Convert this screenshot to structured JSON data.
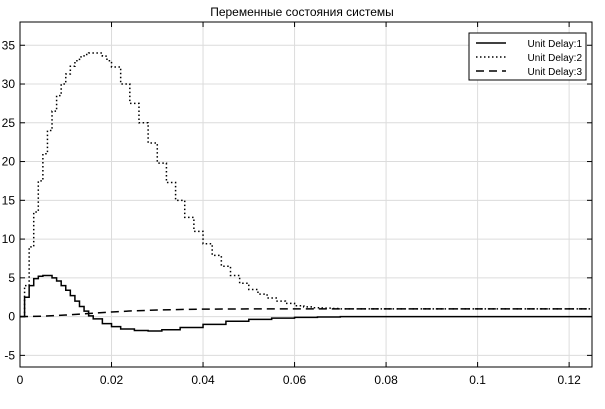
{
  "chart_data": {
    "type": "line",
    "title": "Переменные состояния системы",
    "xlabel": "",
    "ylabel": "",
    "xlim": [
      0,
      0.125
    ],
    "ylim": [
      -6.5,
      38
    ],
    "xticks": [
      0,
      0.02,
      0.04,
      0.06,
      0.08,
      0.1,
      0.12
    ],
    "xtick_labels": [
      "0",
      "0.02",
      "0.04",
      "0.06",
      "0.08",
      "0.1",
      "0.12"
    ],
    "yticks": [
      -5,
      0,
      5,
      10,
      15,
      20,
      25,
      30,
      35
    ],
    "ytick_labels": [
      "-5",
      "0",
      "5",
      "10",
      "15",
      "20",
      "25",
      "30",
      "35"
    ],
    "grid": true,
    "legend_position": "top-right",
    "series": [
      {
        "name": "Unit Delay:1",
        "style": "solid",
        "step": true,
        "color": "#000000",
        "points": [
          [
            0,
            0
          ],
          [
            0.001,
            2.5
          ],
          [
            0.002,
            4.0
          ],
          [
            0.003,
            4.9
          ],
          [
            0.004,
            5.2
          ],
          [
            0.005,
            5.3
          ],
          [
            0.006,
            5.3
          ],
          [
            0.007,
            5.0
          ],
          [
            0.008,
            4.6
          ],
          [
            0.009,
            4.0
          ],
          [
            0.01,
            3.4
          ],
          [
            0.011,
            2.7
          ],
          [
            0.012,
            2.0
          ],
          [
            0.013,
            1.3
          ],
          [
            0.014,
            0.7
          ],
          [
            0.015,
            0.1
          ],
          [
            0.016,
            -0.3
          ],
          [
            0.018,
            -0.9
          ],
          [
            0.02,
            -1.3
          ],
          [
            0.022,
            -1.6
          ],
          [
            0.025,
            -1.8
          ],
          [
            0.028,
            -1.85
          ],
          [
            0.031,
            -1.7
          ],
          [
            0.035,
            -1.4
          ],
          [
            0.04,
            -1.0
          ],
          [
            0.045,
            -0.6
          ],
          [
            0.05,
            -0.35
          ],
          [
            0.055,
            -0.2
          ],
          [
            0.06,
            -0.1
          ],
          [
            0.065,
            -0.05
          ],
          [
            0.07,
            0
          ],
          [
            0.125,
            0
          ]
        ]
      },
      {
        "name": "Unit Delay:2",
        "style": "dotted",
        "step": true,
        "color": "#000000",
        "points": [
          [
            0,
            0
          ],
          [
            0.001,
            4
          ],
          [
            0.002,
            9
          ],
          [
            0.003,
            13.5
          ],
          [
            0.004,
            17.5
          ],
          [
            0.005,
            21
          ],
          [
            0.006,
            24
          ],
          [
            0.007,
            26.5
          ],
          [
            0.008,
            28.5
          ],
          [
            0.009,
            30
          ],
          [
            0.01,
            31.3
          ],
          [
            0.011,
            32.3
          ],
          [
            0.012,
            33
          ],
          [
            0.013,
            33.5
          ],
          [
            0.014,
            33.8
          ],
          [
            0.015,
            34
          ],
          [
            0.016,
            34
          ],
          [
            0.017,
            34
          ],
          [
            0.018,
            33.6
          ],
          [
            0.019,
            33
          ],
          [
            0.02,
            32.2
          ],
          [
            0.022,
            30
          ],
          [
            0.024,
            27.5
          ],
          [
            0.026,
            25
          ],
          [
            0.028,
            22.4
          ],
          [
            0.03,
            19.8
          ],
          [
            0.032,
            17.3
          ],
          [
            0.034,
            15
          ],
          [
            0.036,
            12.8
          ],
          [
            0.038,
            11
          ],
          [
            0.04,
            9.4
          ],
          [
            0.042,
            7.9
          ],
          [
            0.044,
            6.5
          ],
          [
            0.046,
            5.3
          ],
          [
            0.048,
            4.3
          ],
          [
            0.05,
            3.5
          ],
          [
            0.052,
            2.9
          ],
          [
            0.054,
            2.4
          ],
          [
            0.056,
            2.0
          ],
          [
            0.058,
            1.7
          ],
          [
            0.06,
            1.4
          ],
          [
            0.062,
            1.25
          ],
          [
            0.064,
            1.15
          ],
          [
            0.066,
            1.1
          ],
          [
            0.068,
            1.05
          ],
          [
            0.07,
            1.0
          ],
          [
            0.125,
            1.0
          ]
        ]
      },
      {
        "name": "Unit Delay:3",
        "style": "dashed",
        "step": false,
        "color": "#000000",
        "points": [
          [
            0,
            0
          ],
          [
            0.005,
            0.05
          ],
          [
            0.01,
            0.2
          ],
          [
            0.015,
            0.4
          ],
          [
            0.02,
            0.6
          ],
          [
            0.025,
            0.75
          ],
          [
            0.03,
            0.85
          ],
          [
            0.035,
            0.92
          ],
          [
            0.04,
            0.96
          ],
          [
            0.045,
            0.98
          ],
          [
            0.05,
            0.99
          ],
          [
            0.06,
            1.0
          ],
          [
            0.125,
            1.0
          ]
        ]
      }
    ]
  }
}
